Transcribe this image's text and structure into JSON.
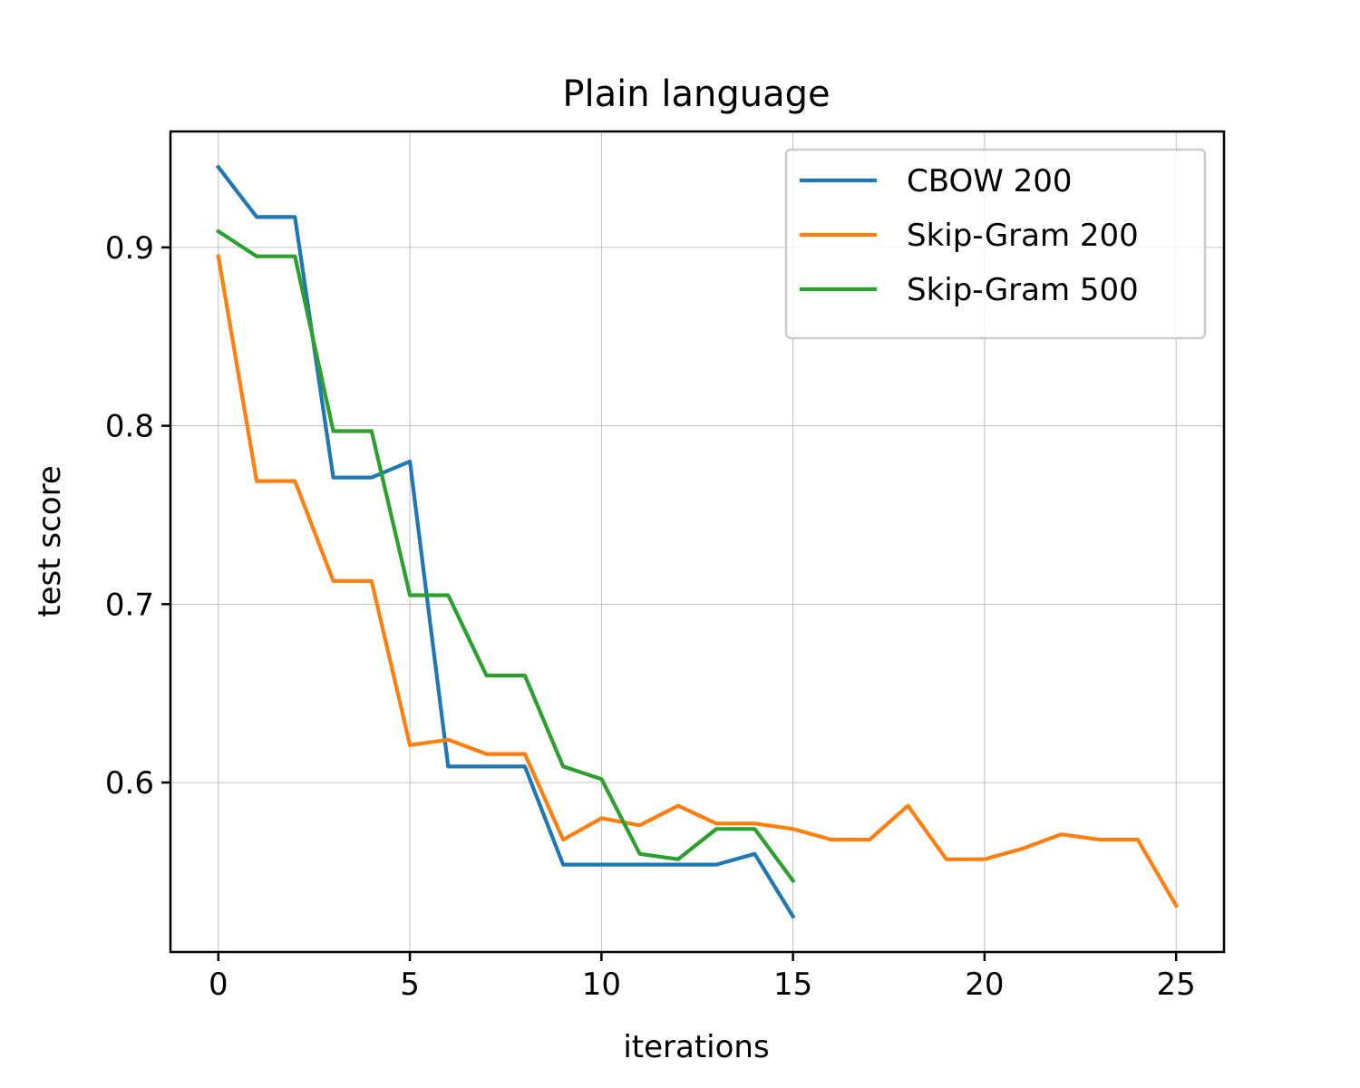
{
  "chart_data": {
    "type": "line",
    "title": "Plain language",
    "xlabel": "iterations",
    "ylabel": "test score",
    "xlim": [
      -1.25,
      26.25
    ],
    "ylim": [
      0.505,
      0.965
    ],
    "xticks": [
      0,
      5,
      10,
      15,
      20,
      25
    ],
    "xtick_labels": [
      "0",
      "5",
      "10",
      "15",
      "20",
      "25"
    ],
    "yticks": [
      0.6,
      0.7,
      0.8,
      0.9
    ],
    "ytick_labels": [
      "0.6",
      "0.7",
      "0.8",
      "0.9"
    ],
    "grid": true,
    "legend_position": "top-right",
    "series": [
      {
        "name": "CBOW 200",
        "color": "#1f77b4",
        "x": [
          0,
          1,
          2,
          3,
          4,
          5,
          6,
          7,
          8,
          9,
          10,
          11,
          12,
          13,
          14,
          15
        ],
        "values": [
          0.945,
          0.917,
          0.917,
          0.771,
          0.771,
          0.78,
          0.609,
          0.609,
          0.609,
          0.554,
          0.554,
          0.554,
          0.554,
          0.554,
          0.56,
          0.525
        ]
      },
      {
        "name": "Skip-Gram 200",
        "color": "#ff7f0e",
        "x": [
          0,
          1,
          2,
          3,
          4,
          5,
          6,
          7,
          8,
          9,
          10,
          11,
          12,
          13,
          14,
          15,
          16,
          17,
          18,
          19,
          20,
          21,
          22,
          23,
          24,
          25
        ],
        "values": [
          0.895,
          0.769,
          0.769,
          0.713,
          0.713,
          0.621,
          0.624,
          0.616,
          0.616,
          0.568,
          0.58,
          0.576,
          0.587,
          0.577,
          0.577,
          0.574,
          0.568,
          0.568,
          0.587,
          0.557,
          0.557,
          0.563,
          0.571,
          0.568,
          0.568,
          0.531
        ]
      },
      {
        "name": "Skip-Gram 500",
        "color": "#2ca02c",
        "x": [
          0,
          1,
          2,
          3,
          4,
          5,
          6,
          7,
          8,
          9,
          10,
          11,
          12,
          13,
          14,
          15
        ],
        "values": [
          0.909,
          0.895,
          0.895,
          0.797,
          0.797,
          0.705,
          0.705,
          0.66,
          0.66,
          0.609,
          0.602,
          0.56,
          0.557,
          0.574,
          0.574,
          0.545
        ]
      }
    ]
  }
}
